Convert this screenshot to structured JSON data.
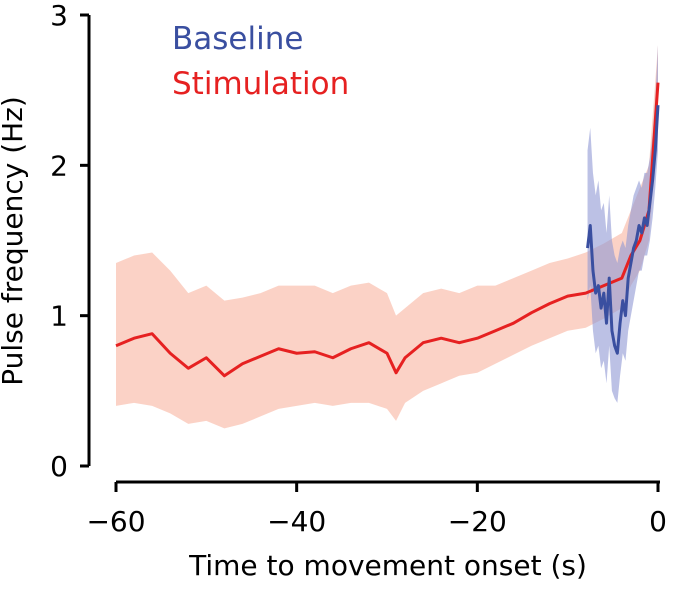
{
  "chart_data": {
    "type": "line",
    "title": "",
    "xlabel": "Time to movement onset (s)",
    "ylabel": "Pulse frequency (Hz)",
    "xlim": [
      -60,
      0
    ],
    "ylim": [
      0,
      3
    ],
    "xticks": [
      -60,
      -40,
      -20,
      0
    ],
    "xtick_labels": [
      "−60",
      "−40",
      "−20",
      "0"
    ],
    "yticks": [
      0,
      1,
      2,
      3
    ],
    "ytick_labels": [
      "0",
      "1",
      "2",
      "3"
    ],
    "grid": false,
    "legend_position": "top-left",
    "series": [
      {
        "name": "Baseline",
        "color": "#3a4fa0",
        "band_color": "#8f97d4",
        "x": [
          -7.8,
          -7.5,
          -7.2,
          -6.9,
          -6.6,
          -6.3,
          -6.0,
          -5.7,
          -5.4,
          -5.1,
          -4.8,
          -4.5,
          -4.2,
          -3.9,
          -3.6,
          -3.3,
          -3.0,
          -2.7,
          -2.4,
          -2.1,
          -1.8,
          -1.5,
          -1.2,
          -0.9,
          -0.6,
          -0.3,
          0.0
        ],
        "y": [
          1.45,
          1.6,
          1.3,
          1.15,
          1.2,
          1.05,
          1.15,
          0.95,
          1.25,
          0.9,
          0.8,
          0.75,
          0.95,
          1.1,
          1.0,
          1.25,
          1.35,
          1.45,
          1.5,
          1.6,
          1.55,
          1.65,
          1.6,
          1.75,
          1.9,
          2.1,
          2.4
        ],
        "lower": [
          1.1,
          1.2,
          0.9,
          0.75,
          0.8,
          0.65,
          0.7,
          0.55,
          0.8,
          0.5,
          0.45,
          0.42,
          0.6,
          0.75,
          0.7,
          0.9,
          1.0,
          1.1,
          1.2,
          1.3,
          1.3,
          1.4,
          1.4,
          1.5,
          1.65,
          1.85,
          2.1
        ],
        "upper": [
          2.1,
          2.25,
          1.95,
          1.8,
          1.9,
          1.7,
          1.75,
          1.55,
          1.8,
          1.5,
          1.4,
          1.35,
          1.45,
          1.5,
          1.45,
          1.6,
          1.7,
          1.8,
          1.85,
          1.9,
          1.85,
          1.95,
          1.95,
          2.05,
          2.2,
          2.45,
          2.8
        ]
      },
      {
        "name": "Stimulation",
        "color": "#e62121",
        "band_color": "#f9b4a0",
        "x": [
          -60,
          -58,
          -56,
          -54,
          -52,
          -50,
          -48,
          -46,
          -44,
          -42,
          -40,
          -38,
          -36,
          -34,
          -32,
          -30,
          -29,
          -28,
          -26,
          -24,
          -22,
          -20,
          -18,
          -16,
          -14,
          -12,
          -10,
          -8,
          -6,
          -4,
          -3,
          -2,
          -1,
          0
        ],
        "y": [
          0.8,
          0.85,
          0.88,
          0.75,
          0.65,
          0.72,
          0.6,
          0.68,
          0.73,
          0.78,
          0.75,
          0.76,
          0.72,
          0.78,
          0.82,
          0.75,
          0.62,
          0.72,
          0.82,
          0.85,
          0.82,
          0.85,
          0.9,
          0.95,
          1.02,
          1.08,
          1.13,
          1.15,
          1.2,
          1.25,
          1.4,
          1.5,
          1.7,
          2.55
        ],
        "lower": [
          0.4,
          0.42,
          0.4,
          0.35,
          0.28,
          0.3,
          0.25,
          0.28,
          0.33,
          0.38,
          0.4,
          0.42,
          0.4,
          0.42,
          0.42,
          0.38,
          0.3,
          0.42,
          0.5,
          0.55,
          0.6,
          0.62,
          0.68,
          0.74,
          0.8,
          0.85,
          0.9,
          0.92,
          0.98,
          1.05,
          1.2,
          1.3,
          1.5,
          2.3
        ],
        "upper": [
          1.35,
          1.4,
          1.42,
          1.3,
          1.15,
          1.2,
          1.1,
          1.12,
          1.15,
          1.2,
          1.2,
          1.2,
          1.15,
          1.2,
          1.22,
          1.15,
          1.0,
          1.05,
          1.15,
          1.18,
          1.15,
          1.2,
          1.2,
          1.25,
          1.3,
          1.35,
          1.38,
          1.42,
          1.48,
          1.55,
          1.7,
          1.85,
          2.0,
          2.8
        ]
      }
    ]
  }
}
